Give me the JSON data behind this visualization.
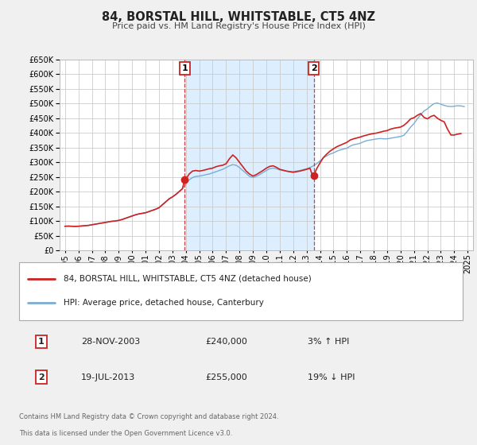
{
  "title": "84, BORSTAL HILL, WHITSTABLE, CT5 4NZ",
  "subtitle": "Price paid vs. HM Land Registry's House Price Index (HPI)",
  "ylim": [
    0,
    650000
  ],
  "yticks": [
    0,
    50000,
    100000,
    150000,
    200000,
    250000,
    300000,
    350000,
    400000,
    450000,
    500000,
    550000,
    600000,
    650000
  ],
  "xlim_start": 1994.6,
  "xlim_end": 2025.4,
  "bg_color": "#f0f0f0",
  "plot_bg_color": "#ffffff",
  "grid_color": "#cccccc",
  "hpi_color": "#7aadd4",
  "price_color": "#cc2222",
  "sale1_x": 2003.91,
  "sale1_y": 240000,
  "sale2_x": 2013.54,
  "sale2_y": 255000,
  "vline1_x": 2003.91,
  "vline2_x": 2013.54,
  "shade_color": "#ddeeff",
  "legend_label1": "84, BORSTAL HILL, WHITSTABLE, CT5 4NZ (detached house)",
  "legend_label2": "HPI: Average price, detached house, Canterbury",
  "table_row1": [
    "1",
    "28-NOV-2003",
    "£240,000",
    "3% ↑ HPI"
  ],
  "table_row2": [
    "2",
    "19-JUL-2013",
    "£255,000",
    "19% ↓ HPI"
  ],
  "footnote1": "Contains HM Land Registry data © Crown copyright and database right 2024.",
  "footnote2": "This data is licensed under the Open Government Licence v3.0.",
  "hpi_data": [
    [
      1995.0,
      82000
    ],
    [
      1995.25,
      82500
    ],
    [
      1995.5,
      82000
    ],
    [
      1995.75,
      81500
    ],
    [
      1996.0,
      82000
    ],
    [
      1996.25,
      83000
    ],
    [
      1996.5,
      84000
    ],
    [
      1996.75,
      85000
    ],
    [
      1997.0,
      87000
    ],
    [
      1997.25,
      89000
    ],
    [
      1997.5,
      91000
    ],
    [
      1997.75,
      93000
    ],
    [
      1998.0,
      95000
    ],
    [
      1998.25,
      97000
    ],
    [
      1998.5,
      99000
    ],
    [
      1998.75,
      100000
    ],
    [
      1999.0,
      102000
    ],
    [
      1999.25,
      105000
    ],
    [
      1999.5,
      109000
    ],
    [
      1999.75,
      113000
    ],
    [
      2000.0,
      117000
    ],
    [
      2000.25,
      121000
    ],
    [
      2000.5,
      124000
    ],
    [
      2000.75,
      126000
    ],
    [
      2001.0,
      128000
    ],
    [
      2001.25,
      132000
    ],
    [
      2001.5,
      136000
    ],
    [
      2001.75,
      140000
    ],
    [
      2002.0,
      145000
    ],
    [
      2002.25,
      155000
    ],
    [
      2002.5,
      165000
    ],
    [
      2002.75,
      175000
    ],
    [
      2003.0,
      182000
    ],
    [
      2003.25,
      190000
    ],
    [
      2003.5,
      200000
    ],
    [
      2003.75,
      210000
    ],
    [
      2004.0,
      225000
    ],
    [
      2004.25,
      240000
    ],
    [
      2004.5,
      248000
    ],
    [
      2004.75,
      252000
    ],
    [
      2005.0,
      253000
    ],
    [
      2005.25,
      255000
    ],
    [
      2005.5,
      258000
    ],
    [
      2005.75,
      260000
    ],
    [
      2006.0,
      264000
    ],
    [
      2006.25,
      268000
    ],
    [
      2006.5,
      272000
    ],
    [
      2006.75,
      276000
    ],
    [
      2007.0,
      282000
    ],
    [
      2007.25,
      288000
    ],
    [
      2007.5,
      292000
    ],
    [
      2007.75,
      290000
    ],
    [
      2008.0,
      282000
    ],
    [
      2008.25,
      272000
    ],
    [
      2008.5,
      262000
    ],
    [
      2008.75,
      252000
    ],
    [
      2009.0,
      248000
    ],
    [
      2009.25,
      252000
    ],
    [
      2009.5,
      258000
    ],
    [
      2009.75,
      265000
    ],
    [
      2010.0,
      272000
    ],
    [
      2010.25,
      278000
    ],
    [
      2010.5,
      280000
    ],
    [
      2010.75,
      278000
    ],
    [
      2011.0,
      274000
    ],
    [
      2011.25,
      272000
    ],
    [
      2011.5,
      270000
    ],
    [
      2011.75,
      268000
    ],
    [
      2012.0,
      268000
    ],
    [
      2012.25,
      270000
    ],
    [
      2012.5,
      272000
    ],
    [
      2012.75,
      275000
    ],
    [
      2013.0,
      278000
    ],
    [
      2013.25,
      282000
    ],
    [
      2013.5,
      288000
    ],
    [
      2013.75,
      295000
    ],
    [
      2014.0,
      305000
    ],
    [
      2014.25,
      315000
    ],
    [
      2014.5,
      322000
    ],
    [
      2014.75,
      328000
    ],
    [
      2015.0,
      332000
    ],
    [
      2015.25,
      338000
    ],
    [
      2015.5,
      342000
    ],
    [
      2015.75,
      345000
    ],
    [
      2016.0,
      348000
    ],
    [
      2016.25,
      355000
    ],
    [
      2016.5,
      360000
    ],
    [
      2016.75,
      362000
    ],
    [
      2017.0,
      365000
    ],
    [
      2017.25,
      370000
    ],
    [
      2017.5,
      374000
    ],
    [
      2017.75,
      376000
    ],
    [
      2018.0,
      378000
    ],
    [
      2018.25,
      380000
    ],
    [
      2018.5,
      381000
    ],
    [
      2018.75,
      380000
    ],
    [
      2019.0,
      380000
    ],
    [
      2019.25,
      382000
    ],
    [
      2019.5,
      384000
    ],
    [
      2019.75,
      386000
    ],
    [
      2020.0,
      388000
    ],
    [
      2020.25,
      392000
    ],
    [
      2020.5,
      405000
    ],
    [
      2020.75,
      420000
    ],
    [
      2021.0,
      432000
    ],
    [
      2021.25,
      448000
    ],
    [
      2021.5,
      462000
    ],
    [
      2021.75,
      475000
    ],
    [
      2022.0,
      482000
    ],
    [
      2022.25,
      492000
    ],
    [
      2022.5,
      500000
    ],
    [
      2022.75,
      502000
    ],
    [
      2023.0,
      498000
    ],
    [
      2023.25,
      494000
    ],
    [
      2023.5,
      491000
    ],
    [
      2023.75,
      490000
    ],
    [
      2024.0,
      491000
    ],
    [
      2024.25,
      493000
    ],
    [
      2024.5,
      492000
    ],
    [
      2024.75,
      490000
    ]
  ],
  "price_data": [
    [
      1995.0,
      82000
    ],
    [
      1995.25,
      82500
    ],
    [
      1995.5,
      82000
    ],
    [
      1995.75,
      81500
    ],
    [
      1996.0,
      82000
    ],
    [
      1996.25,
      83000
    ],
    [
      1996.5,
      84000
    ],
    [
      1996.75,
      85000
    ],
    [
      1997.0,
      87000
    ],
    [
      1997.25,
      89000
    ],
    [
      1997.5,
      91000
    ],
    [
      1997.75,
      93000
    ],
    [
      1998.0,
      95000
    ],
    [
      1998.25,
      97000
    ],
    [
      1998.5,
      99000
    ],
    [
      1998.75,
      100000
    ],
    [
      1999.0,
      102000
    ],
    [
      1999.25,
      105000
    ],
    [
      1999.5,
      109000
    ],
    [
      1999.75,
      113000
    ],
    [
      2000.0,
      117000
    ],
    [
      2000.25,
      121000
    ],
    [
      2000.5,
      124000
    ],
    [
      2000.75,
      126000
    ],
    [
      2001.0,
      128000
    ],
    [
      2001.25,
      132000
    ],
    [
      2001.5,
      136000
    ],
    [
      2001.75,
      140000
    ],
    [
      2002.0,
      145000
    ],
    [
      2002.25,
      155000
    ],
    [
      2002.5,
      165000
    ],
    [
      2002.75,
      175000
    ],
    [
      2003.0,
      182000
    ],
    [
      2003.25,
      190000
    ],
    [
      2003.5,
      200000
    ],
    [
      2003.75,
      210000
    ],
    [
      2003.91,
      240000
    ],
    [
      2004.0,
      242000
    ],
    [
      2004.25,
      260000
    ],
    [
      2004.5,
      270000
    ],
    [
      2004.75,
      272000
    ],
    [
      2005.0,
      270000
    ],
    [
      2005.25,
      272000
    ],
    [
      2005.5,
      275000
    ],
    [
      2005.75,
      278000
    ],
    [
      2006.0,
      280000
    ],
    [
      2006.25,
      285000
    ],
    [
      2006.5,
      288000
    ],
    [
      2006.75,
      290000
    ],
    [
      2007.0,
      295000
    ],
    [
      2007.25,
      312000
    ],
    [
      2007.5,
      325000
    ],
    [
      2007.75,
      315000
    ],
    [
      2008.0,
      300000
    ],
    [
      2008.25,
      285000
    ],
    [
      2008.5,
      270000
    ],
    [
      2008.75,
      260000
    ],
    [
      2009.0,
      253000
    ],
    [
      2009.25,
      258000
    ],
    [
      2009.5,
      265000
    ],
    [
      2009.75,
      272000
    ],
    [
      2010.0,
      280000
    ],
    [
      2010.25,
      286000
    ],
    [
      2010.5,
      288000
    ],
    [
      2010.75,
      283000
    ],
    [
      2011.0,
      276000
    ],
    [
      2011.25,
      273000
    ],
    [
      2011.5,
      270000
    ],
    [
      2011.75,
      268000
    ],
    [
      2012.0,
      266000
    ],
    [
      2012.25,
      268000
    ],
    [
      2012.5,
      270000
    ],
    [
      2012.75,
      273000
    ],
    [
      2013.0,
      276000
    ],
    [
      2013.25,
      280000
    ],
    [
      2013.4,
      260000
    ],
    [
      2013.54,
      255000
    ],
    [
      2013.75,
      278000
    ],
    [
      2014.0,
      298000
    ],
    [
      2014.25,
      316000
    ],
    [
      2014.5,
      328000
    ],
    [
      2014.75,
      338000
    ],
    [
      2015.0,
      346000
    ],
    [
      2015.25,
      353000
    ],
    [
      2015.5,
      358000
    ],
    [
      2015.75,
      363000
    ],
    [
      2016.0,
      368000
    ],
    [
      2016.25,
      376000
    ],
    [
      2016.5,
      380000
    ],
    [
      2016.75,
      383000
    ],
    [
      2017.0,
      386000
    ],
    [
      2017.25,
      390000
    ],
    [
      2017.5,
      393000
    ],
    [
      2017.75,
      396000
    ],
    [
      2018.0,
      398000
    ],
    [
      2018.25,
      400000
    ],
    [
      2018.5,
      403000
    ],
    [
      2018.75,
      406000
    ],
    [
      2019.0,
      408000
    ],
    [
      2019.25,
      413000
    ],
    [
      2019.5,
      416000
    ],
    [
      2019.75,
      418000
    ],
    [
      2020.0,
      420000
    ],
    [
      2020.25,
      426000
    ],
    [
      2020.5,
      436000
    ],
    [
      2020.75,
      448000
    ],
    [
      2021.0,
      452000
    ],
    [
      2021.25,
      460000
    ],
    [
      2021.5,
      466000
    ],
    [
      2021.75,
      453000
    ],
    [
      2022.0,
      448000
    ],
    [
      2022.25,
      456000
    ],
    [
      2022.5,
      460000
    ],
    [
      2022.75,
      450000
    ],
    [
      2023.0,
      443000
    ],
    [
      2023.25,
      438000
    ],
    [
      2023.5,
      413000
    ],
    [
      2023.75,
      393000
    ],
    [
      2024.0,
      393000
    ],
    [
      2024.25,
      396000
    ],
    [
      2024.5,
      398000
    ]
  ]
}
